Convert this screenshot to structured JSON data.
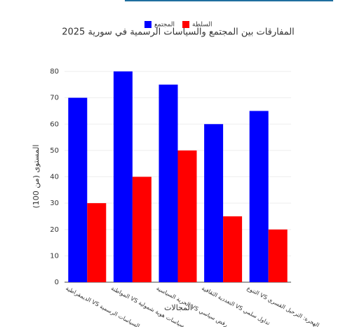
{
  "chart_data": {
    "type": "bar",
    "title": "المفارقات بين المجتمع والسياسات الرسمية في سورية 2025",
    "x_label": "المجالات",
    "y_label": "المستوى (من 100)",
    "categories": [
      "الديمقراطية VS السياسات الرسمية",
      "المواطنة VS سياسات هوية شمولية",
      "الحرية السياسية VS رفض سياسي",
      "التعددية الثقافية VS تداول سلمي",
      "التنوع VS الهجرة: الترحيل القسري"
    ],
    "series": [
      {
        "name": "المجتمع",
        "color": "#0000ff",
        "values": [
          70,
          80,
          75,
          60,
          65
        ]
      },
      {
        "name": "السلطة",
        "color": "#ff0000",
        "values": [
          30,
          40,
          50,
          25,
          20
        ]
      }
    ],
    "ylim": [
      0,
      85
    ],
    "yticks": [
      0,
      10,
      20,
      30,
      40,
      50,
      60,
      70,
      80
    ],
    "grid": true
  }
}
